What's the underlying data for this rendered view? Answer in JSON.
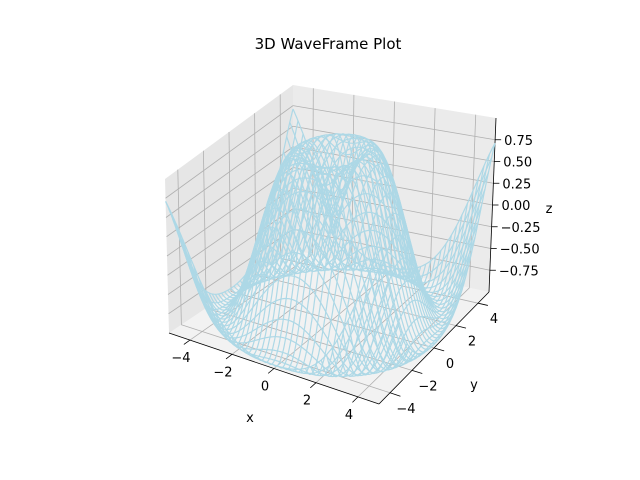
{
  "chart_data": {
    "type": "wireframe",
    "title": "3D WaveFrame Plot",
    "xlabel": "x",
    "ylabel": "y",
    "zlabel": "z",
    "function": "z = sin(sqrt(x^2 + y^2))",
    "xlim": [
      -5,
      5
    ],
    "ylim": [
      -5,
      5
    ],
    "zlim": [
      -1,
      1
    ],
    "x_ticks": [
      -4,
      -2,
      0,
      2,
      4
    ],
    "y_ticks": [
      -4,
      -2,
      0,
      2,
      4
    ],
    "z_ticks": [
      -0.75,
      -0.5,
      -0.25,
      0,
      0.25,
      0.5,
      0.75
    ],
    "x_tick_labels": [
      "−4",
      "−2",
      "0",
      "2",
      "4"
    ],
    "y_tick_labels": [
      "−4",
      "−2",
      "0",
      "2",
      "4"
    ],
    "z_tick_labels": [
      "−0.75",
      "−0.50",
      "−0.25",
      "0.00",
      "0.25",
      "0.50",
      "0.75"
    ],
    "grid": true,
    "line_color": "#add8e6",
    "pane_color": "#f2f2f2"
  }
}
